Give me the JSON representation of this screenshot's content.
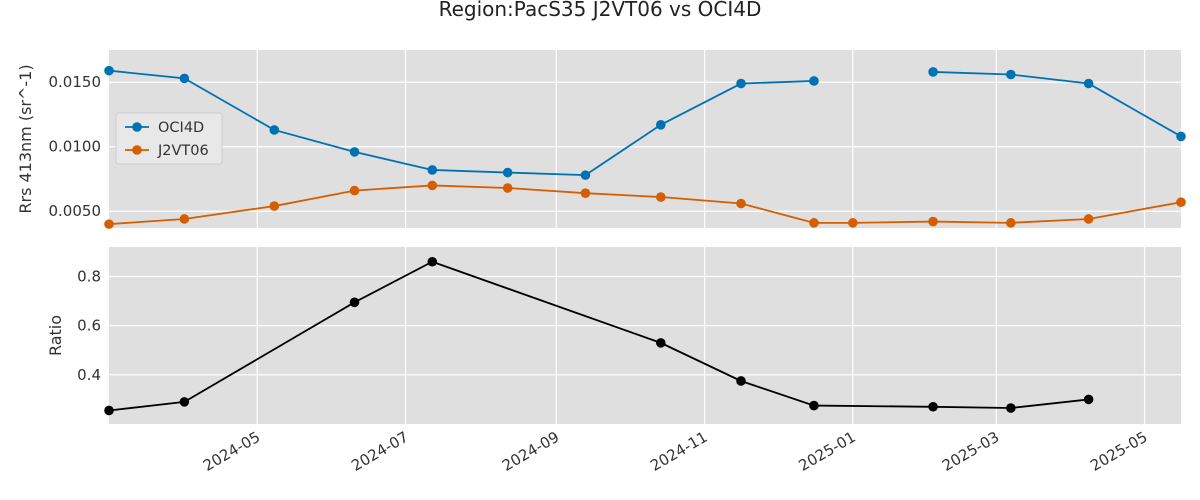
{
  "chart_data": {
    "title": "Region:PacS35 J2VT06 vs OCI4D",
    "type": "line",
    "x_tick_labels": [
      "2024-05",
      "2024-07",
      "2024-09",
      "2024-11",
      "2025-01",
      "2025-03",
      "2025-05"
    ],
    "xlim": [
      "2024-03-01",
      "2025-05-16"
    ],
    "grid": true,
    "panels": [
      {
        "ylabel": "Rrs 413nm (sr^-1)",
        "ylim": [
          0.0037,
          0.0175
        ],
        "yticks": [
          0.005,
          0.01,
          0.015
        ],
        "ytick_labels": [
          "0.0050",
          "0.0100",
          "0.0150"
        ],
        "legend_position": "center-left",
        "series": [
          {
            "name": "OCI4D",
            "color": "#0072b2",
            "points": [
              [
                "2024-03-01",
                0.0159
              ],
              [
                "2024-04-01",
                0.0153
              ],
              [
                "2024-05-08",
                0.0113
              ],
              [
                "2024-06-10",
                0.0096
              ],
              [
                "2024-07-12",
                0.0082
              ],
              [
                "2024-08-12",
                0.008
              ],
              [
                "2024-09-13",
                0.0078
              ],
              [
                "2024-10-14",
                0.0117
              ],
              [
                "2024-11-16",
                0.0149
              ],
              [
                "2024-12-16",
                0.0151
              ],
              null,
              [
                "2025-02-03",
                0.0158
              ],
              [
                "2025-03-07",
                0.0156
              ],
              [
                "2025-04-08",
                0.0149
              ],
              [
                "2025-05-16",
                0.0108
              ]
            ]
          },
          {
            "name": "J2VT06",
            "color": "#d55e00",
            "points": [
              [
                "2024-03-01",
                0.004
              ],
              [
                "2024-04-01",
                0.0044
              ],
              [
                "2024-05-08",
                0.0054
              ],
              [
                "2024-06-10",
                0.0066
              ],
              [
                "2024-07-12",
                0.007
              ],
              [
                "2024-08-12",
                0.0068
              ],
              [
                "2024-09-13",
                0.0064
              ],
              [
                "2024-10-14",
                0.0061
              ],
              [
                "2024-11-16",
                0.0056
              ],
              [
                "2024-12-16",
                0.0041
              ],
              [
                "2025-01-01",
                0.0041
              ],
              [
                "2025-02-03",
                0.0042
              ],
              [
                "2025-03-07",
                0.0041
              ],
              [
                "2025-04-08",
                0.0044
              ],
              [
                "2025-05-16",
                0.0057
              ]
            ]
          }
        ]
      },
      {
        "ylabel": "Ratio",
        "ylim": [
          0.2,
          0.92
        ],
        "yticks": [
          0.4,
          0.6,
          0.8
        ],
        "ytick_labels": [
          "0.4",
          "0.6",
          "0.8"
        ],
        "series": [
          {
            "color": "#000000",
            "points": [
              [
                "2024-03-01",
                0.255
              ],
              [
                "2024-04-01",
                0.29
              ],
              [
                "2024-06-10",
                0.695
              ],
              [
                "2024-07-12",
                0.86
              ],
              [
                "2024-10-14",
                0.53
              ],
              [
                "2024-11-16",
                0.375
              ],
              [
                "2024-12-16",
                0.275
              ],
              [
                "2025-02-03",
                0.27
              ],
              [
                "2025-03-07",
                0.265
              ],
              [
                "2025-04-08",
                0.3
              ]
            ]
          }
        ]
      }
    ]
  }
}
